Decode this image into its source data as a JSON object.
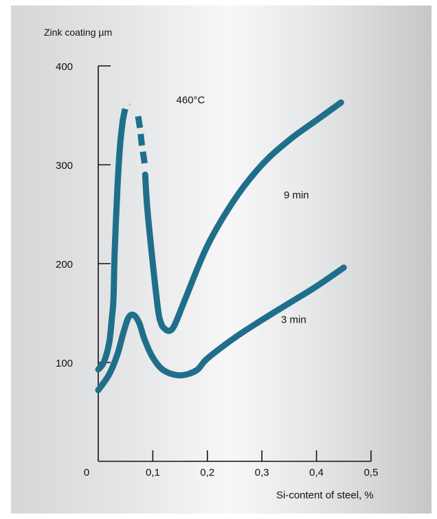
{
  "chart_data": {
    "type": "line",
    "ylabel": "Zink coating µm",
    "xlabel": "Si-content of steel, %",
    "annotation": "460°C",
    "x_origin_label": "0",
    "x_ticks": [
      {
        "value": 0.1,
        "label": "0,1"
      },
      {
        "value": 0.2,
        "label": "0,2"
      },
      {
        "value": 0.3,
        "label": "0,3"
      },
      {
        "value": 0.4,
        "label": "0,4"
      },
      {
        "value": 0.5,
        "label": "0,5"
      }
    ],
    "y_ticks": [
      {
        "value": 100,
        "label": "100"
      },
      {
        "value": 200,
        "label": "200"
      },
      {
        "value": 300,
        "label": "300"
      },
      {
        "value": 400,
        "label": "400"
      }
    ],
    "xlim": [
      0,
      0.5
    ],
    "ylim": [
      0,
      400
    ],
    "grid": false,
    "line_color": "#1f6f8b",
    "series": [
      {
        "name": "9 min",
        "segments": [
          {
            "dashed": false,
            "x": [
              0.0,
              0.01,
              0.02,
              0.025,
              0.028,
              0.03,
              0.035,
              0.04,
              0.045
            ],
            "y": [
              93,
              100,
              120,
              145,
              165,
              210,
              275,
              320,
              345
            ]
          },
          {
            "dashed": true,
            "x": [
              0.045,
              0.05,
              0.055
            ],
            "y": [
              345,
              358,
              362
            ]
          },
          {
            "dashed": true,
            "x": [
              0.073,
              0.077,
              0.08,
              0.086
            ],
            "y": [
              349,
              335,
              320,
              298
            ]
          },
          {
            "dashed": false,
            "x": [
              0.086,
              0.09,
              0.1,
              0.11,
              0.115,
              0.12,
              0.13,
              0.14,
              0.16,
              0.2,
              0.25,
              0.3,
              0.35,
              0.4,
              0.445
            ],
            "y": [
              290,
              255,
              200,
              152,
              140,
              135,
              132,
              138,
              165,
              218,
              265,
              300,
              325,
              345,
              363
            ]
          }
        ]
      },
      {
        "name": "3 min",
        "segments": [
          {
            "dashed": false,
            "x": [
              0.0,
              0.02,
              0.035,
              0.045,
              0.055,
              0.065,
              0.075,
              0.085,
              0.1,
              0.12,
              0.15,
              0.18,
              0.2,
              0.25,
              0.3,
              0.35,
              0.4,
              0.45
            ],
            "y": [
              72,
              88,
              108,
              128,
              145,
              148,
              140,
              123,
              105,
              92,
              87,
              92,
              104,
              125,
              143,
              160,
              177,
              196
            ]
          }
        ]
      }
    ],
    "series_labels": [
      {
        "series": "9 min",
        "x": 0.34,
        "y": 266
      },
      {
        "series": "3 min",
        "x": 0.335,
        "y": 140
      }
    ],
    "annotation_pos": {
      "x": 0.143,
      "y": 362
    }
  }
}
